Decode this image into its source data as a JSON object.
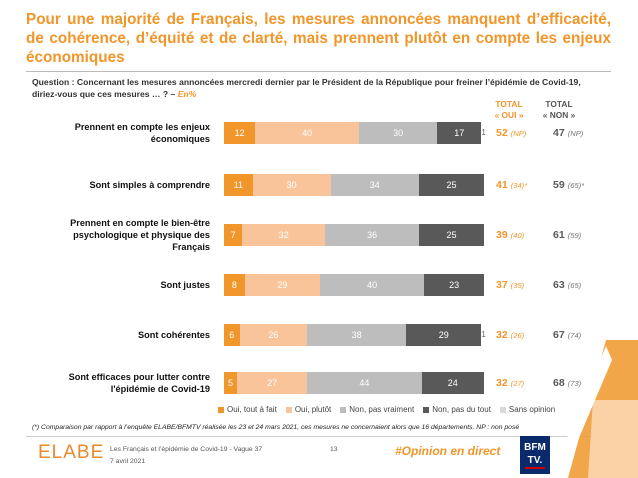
{
  "title": "Pour une majorité de Français, les mesures annoncées manquent d’efficacité, de cohérence, d’équité et de clarté, mais prennent plutôt en compte les enjeux économiques",
  "question": {
    "text": "Question : Concernant les mesures annoncées mercredi dernier par le Président de la République pour freiner l’épidémie de Covid-19, diriez-vous que ces mesures … ? –",
    "unit": "En%"
  },
  "columns": {
    "oui_line1": "TOTAL",
    "oui_line2": "« OUI »",
    "non_line1": "TOTAL",
    "non_line2": "« NON »"
  },
  "colors": {
    "oui_tout_a_fait": "#f0962a",
    "oui_plutot": "#f9c49a",
    "non_pas_vraiment": "#bdbdbd",
    "non_pas_du_tout": "#595959",
    "sans_opinion": "#d9d9d9",
    "accent": "#f0962a"
  },
  "chart_data": {
    "type": "bar",
    "orientation": "horizontal",
    "stacked": true,
    "title": "",
    "xlabel": "",
    "ylabel": "",
    "xlim": [
      0,
      100
    ],
    "legend_position": "bottom",
    "categories": [
      "Prennent en compte les enjeux économiques",
      "Sont simples à comprendre",
      "Prennent en compte le bien-être psychologique et physique des Français",
      "Sont justes",
      "Sont cohérentes",
      "Sont efficaces pour lutter contre l'épidémie de Covid-19"
    ],
    "series": [
      {
        "name": "Oui, tout à fait",
        "values": [
          12,
          11,
          7,
          8,
          6,
          5
        ]
      },
      {
        "name": "Oui, plutôt",
        "values": [
          40,
          30,
          32,
          29,
          26,
          27
        ]
      },
      {
        "name": "Non, pas vraiment",
        "values": [
          30,
          34,
          36,
          40,
          38,
          44
        ]
      },
      {
        "name": "Non, pas du tout",
        "values": [
          17,
          25,
          25,
          23,
          29,
          24
        ]
      },
      {
        "name": "Sans opinion",
        "values": [
          1,
          null,
          null,
          null,
          1,
          null
        ]
      }
    ],
    "total_oui": [
      {
        "value": "52",
        "compare": "(NP)"
      },
      {
        "value": "41",
        "compare": "(34)*"
      },
      {
        "value": "39",
        "compare": "(40)"
      },
      {
        "value": "37",
        "compare": "(35)"
      },
      {
        "value": "32",
        "compare": "(26)"
      },
      {
        "value": "32",
        "compare": "(27)"
      }
    ],
    "total_non": [
      {
        "value": "47",
        "compare": "(NP)"
      },
      {
        "value": "59",
        "compare": "(65)*"
      },
      {
        "value": "61",
        "compare": "(59)"
      },
      {
        "value": "63",
        "compare": "(65)"
      },
      {
        "value": "67",
        "compare": "(74)"
      },
      {
        "value": "68",
        "compare": "(73)"
      }
    ]
  },
  "footnote": "(*) Comparaison par rapport à l’enquête ELABE/BFMTV réalisée les 23 et 24 mars 2021, ces mesures ne concernaient alors que 16 départements. NP : non posé",
  "footer": {
    "logo_text": "ELABE",
    "study": "Les Français et l’épidémie de Covid-19 - Vague 37",
    "date": "7 avril 2021",
    "page": "13",
    "hashtag": "#Opinion en direct",
    "channel_line1": "BFM",
    "channel_line2": "TV."
  }
}
